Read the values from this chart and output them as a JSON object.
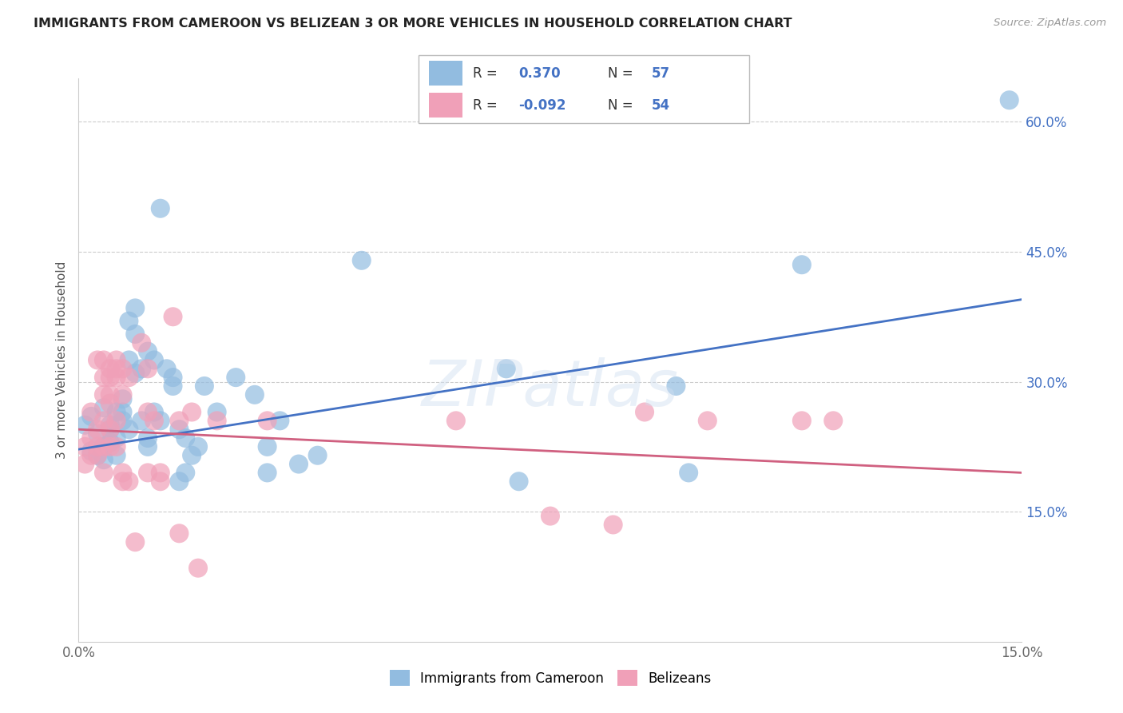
{
  "title": "IMMIGRANTS FROM CAMEROON VS BELIZEAN 3 OR MORE VEHICLES IN HOUSEHOLD CORRELATION CHART",
  "source": "Source: ZipAtlas.com",
  "ylabel": "3 or more Vehicles in Household",
  "x_min": 0.0,
  "x_max": 0.15,
  "y_min": 0.0,
  "y_max": 0.65,
  "y_ticks": [
    0.15,
    0.3,
    0.45,
    0.6
  ],
  "y_tick_labels": [
    "15.0%",
    "30.0%",
    "45.0%",
    "60.0%"
  ],
  "blue_color": "#92bce0",
  "pink_color": "#f0a0b8",
  "blue_line_color": "#4472c4",
  "pink_line_color": "#d06080",
  "watermark": "ZIPatlas",
  "blue_scatter": [
    [
      0.001,
      0.25
    ],
    [
      0.002,
      0.22
    ],
    [
      0.002,
      0.26
    ],
    [
      0.003,
      0.24
    ],
    [
      0.003,
      0.215
    ],
    [
      0.004,
      0.225
    ],
    [
      0.004,
      0.21
    ],
    [
      0.004,
      0.27
    ],
    [
      0.005,
      0.25
    ],
    [
      0.005,
      0.23
    ],
    [
      0.005,
      0.245
    ],
    [
      0.006,
      0.265
    ],
    [
      0.006,
      0.235
    ],
    [
      0.006,
      0.215
    ],
    [
      0.007,
      0.28
    ],
    [
      0.007,
      0.255
    ],
    [
      0.007,
      0.265
    ],
    [
      0.008,
      0.325
    ],
    [
      0.008,
      0.37
    ],
    [
      0.008,
      0.245
    ],
    [
      0.009,
      0.385
    ],
    [
      0.009,
      0.355
    ],
    [
      0.009,
      0.31
    ],
    [
      0.01,
      0.315
    ],
    [
      0.01,
      0.255
    ],
    [
      0.011,
      0.235
    ],
    [
      0.011,
      0.225
    ],
    [
      0.011,
      0.335
    ],
    [
      0.012,
      0.325
    ],
    [
      0.012,
      0.265
    ],
    [
      0.013,
      0.5
    ],
    [
      0.013,
      0.255
    ],
    [
      0.014,
      0.315
    ],
    [
      0.015,
      0.305
    ],
    [
      0.015,
      0.295
    ],
    [
      0.016,
      0.185
    ],
    [
      0.016,
      0.245
    ],
    [
      0.017,
      0.195
    ],
    [
      0.017,
      0.235
    ],
    [
      0.018,
      0.215
    ],
    [
      0.019,
      0.225
    ],
    [
      0.02,
      0.295
    ],
    [
      0.022,
      0.265
    ],
    [
      0.025,
      0.305
    ],
    [
      0.028,
      0.285
    ],
    [
      0.03,
      0.225
    ],
    [
      0.03,
      0.195
    ],
    [
      0.032,
      0.255
    ],
    [
      0.035,
      0.205
    ],
    [
      0.038,
      0.215
    ],
    [
      0.045,
      0.44
    ],
    [
      0.068,
      0.315
    ],
    [
      0.07,
      0.185
    ],
    [
      0.095,
      0.295
    ],
    [
      0.097,
      0.195
    ],
    [
      0.115,
      0.435
    ],
    [
      0.148,
      0.625
    ]
  ],
  "pink_scatter": [
    [
      0.001,
      0.225
    ],
    [
      0.001,
      0.205
    ],
    [
      0.002,
      0.265
    ],
    [
      0.002,
      0.235
    ],
    [
      0.002,
      0.215
    ],
    [
      0.003,
      0.325
    ],
    [
      0.003,
      0.245
    ],
    [
      0.003,
      0.225
    ],
    [
      0.003,
      0.215
    ],
    [
      0.004,
      0.325
    ],
    [
      0.004,
      0.305
    ],
    [
      0.004,
      0.285
    ],
    [
      0.004,
      0.255
    ],
    [
      0.004,
      0.225
    ],
    [
      0.004,
      0.195
    ],
    [
      0.005,
      0.315
    ],
    [
      0.005,
      0.305
    ],
    [
      0.005,
      0.285
    ],
    [
      0.005,
      0.275
    ],
    [
      0.005,
      0.245
    ],
    [
      0.005,
      0.225
    ],
    [
      0.006,
      0.325
    ],
    [
      0.006,
      0.315
    ],
    [
      0.006,
      0.305
    ],
    [
      0.006,
      0.255
    ],
    [
      0.006,
      0.225
    ],
    [
      0.007,
      0.315
    ],
    [
      0.007,
      0.285
    ],
    [
      0.007,
      0.195
    ],
    [
      0.007,
      0.185
    ],
    [
      0.008,
      0.305
    ],
    [
      0.008,
      0.185
    ],
    [
      0.009,
      0.115
    ],
    [
      0.01,
      0.345
    ],
    [
      0.011,
      0.315
    ],
    [
      0.011,
      0.265
    ],
    [
      0.011,
      0.195
    ],
    [
      0.012,
      0.255
    ],
    [
      0.013,
      0.195
    ],
    [
      0.013,
      0.185
    ],
    [
      0.015,
      0.375
    ],
    [
      0.016,
      0.255
    ],
    [
      0.016,
      0.125
    ],
    [
      0.018,
      0.265
    ],
    [
      0.019,
      0.085
    ],
    [
      0.022,
      0.255
    ],
    [
      0.03,
      0.255
    ],
    [
      0.06,
      0.255
    ],
    [
      0.075,
      0.145
    ],
    [
      0.085,
      0.135
    ],
    [
      0.09,
      0.265
    ],
    [
      0.1,
      0.255
    ],
    [
      0.115,
      0.255
    ],
    [
      0.12,
      0.255
    ]
  ],
  "blue_trend_y0": 0.222,
  "blue_trend_y1": 0.395,
  "pink_trend_y0": 0.245,
  "pink_trend_y1": 0.195
}
